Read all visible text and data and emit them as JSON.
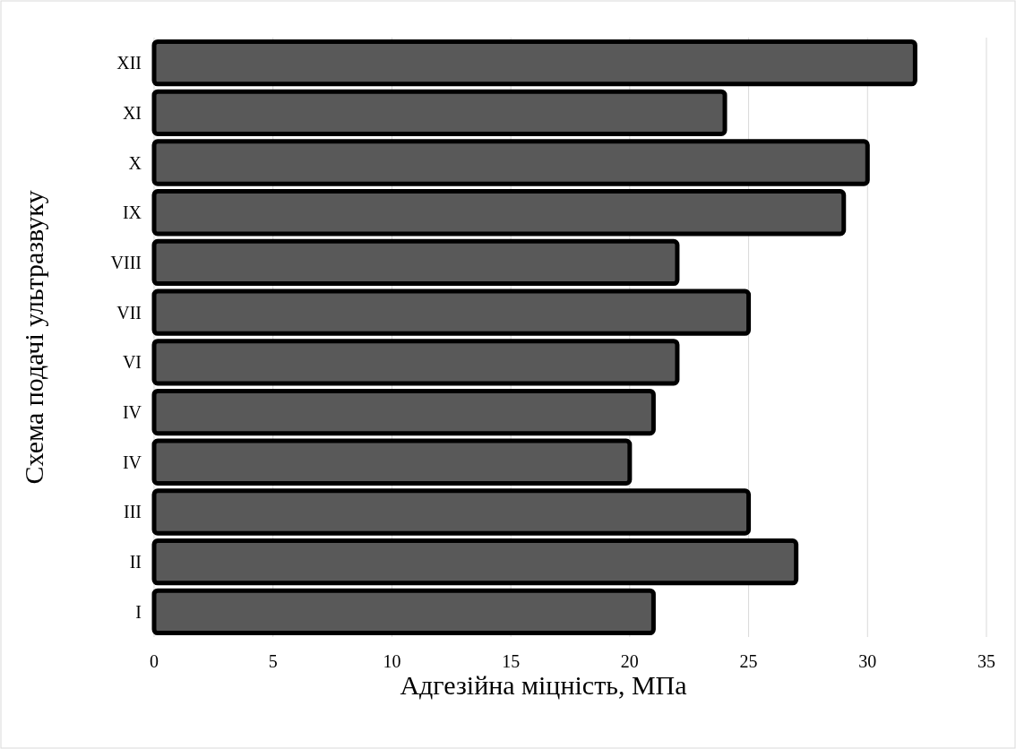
{
  "chart_data": {
    "type": "bar",
    "orientation": "horizontal",
    "xlabel": "Адгезійна міцність, МПа",
    "ylabel": "Схема подачі ультразвуку",
    "categories": [
      "XII",
      "XI",
      "X",
      "IX",
      "VIII",
      "VII",
      "VI",
      "IV",
      "IV",
      "III",
      "II",
      "I"
    ],
    "values": [
      32,
      24,
      30,
      29,
      22,
      25,
      22,
      21,
      20,
      25,
      27,
      21
    ],
    "color": "#595959",
    "xlim": [
      0,
      35
    ],
    "xticks": [
      0,
      5,
      10,
      15,
      20,
      25,
      30,
      35
    ],
    "grid": "x"
  }
}
